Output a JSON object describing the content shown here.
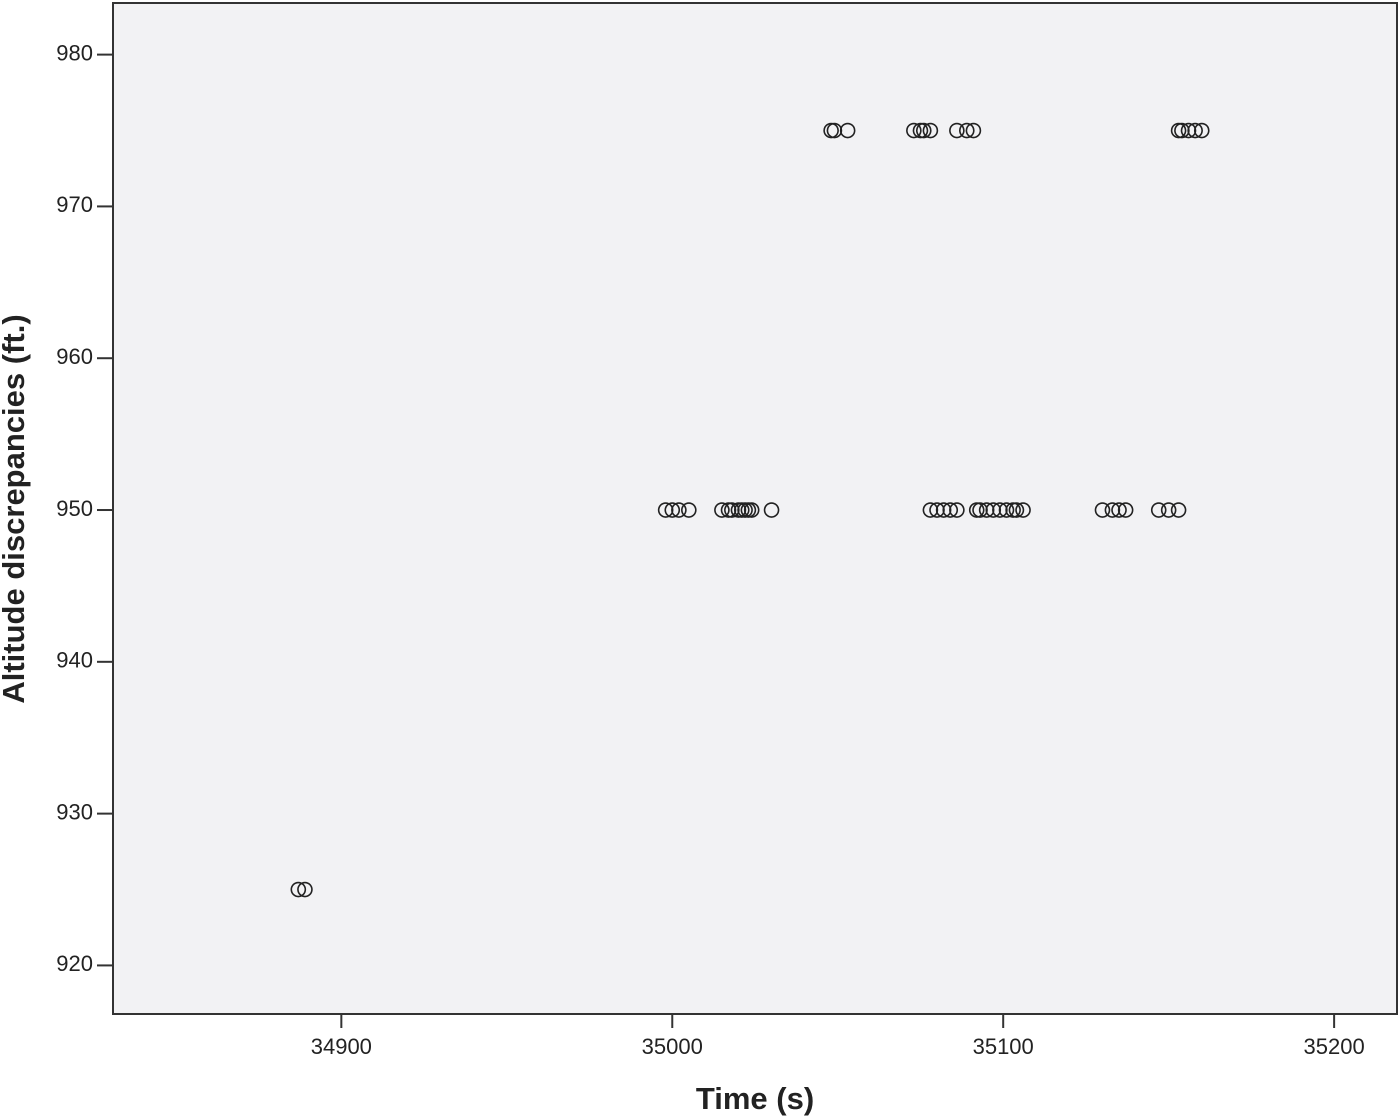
{
  "chart_data": {
    "type": "scatter",
    "x_label": "Time (s)",
    "y_label": "Altitude discrepancies (ft.)",
    "x": [
      35048,
      35049,
      35053,
      35073,
      35075,
      35076,
      35078,
      35086,
      35089,
      35091,
      35153,
      35154,
      35156,
      35158,
      35160,
      34998,
      35000,
      35002,
      35005,
      35015,
      35017,
      35018,
      35020,
      35021,
      35022,
      35023,
      35024,
      35030,
      35078,
      35080,
      35082,
      35084,
      35086,
      35092,
      35093,
      35095,
      35097,
      35099,
      35101,
      35103,
      35104,
      35106,
      35130,
      35133,
      35135,
      35137,
      35147,
      35150,
      35153,
      34887,
      34889
    ],
    "y": [
      975,
      975,
      975,
      975,
      975,
      975,
      975,
      975,
      975,
      975,
      975,
      975,
      975,
      975,
      975,
      950,
      950,
      950,
      950,
      950,
      950,
      950,
      950,
      950,
      950,
      950,
      950,
      950,
      950,
      950,
      950,
      950,
      950,
      950,
      950,
      950,
      950,
      950,
      950,
      950,
      950,
      950,
      950,
      950,
      950,
      950,
      950,
      950,
      950,
      925,
      925
    ],
    "color": "#222222",
    "background": "#f2f2f4",
    "xlim": [
      34831,
      35219
    ],
    "ylim": [
      916.8,
      983.4
    ],
    "xticks": [
      34900,
      35000,
      35100,
      35200
    ],
    "yticks": [
      920,
      930,
      940,
      950,
      960,
      970,
      980
    ],
    "grid": false
  }
}
